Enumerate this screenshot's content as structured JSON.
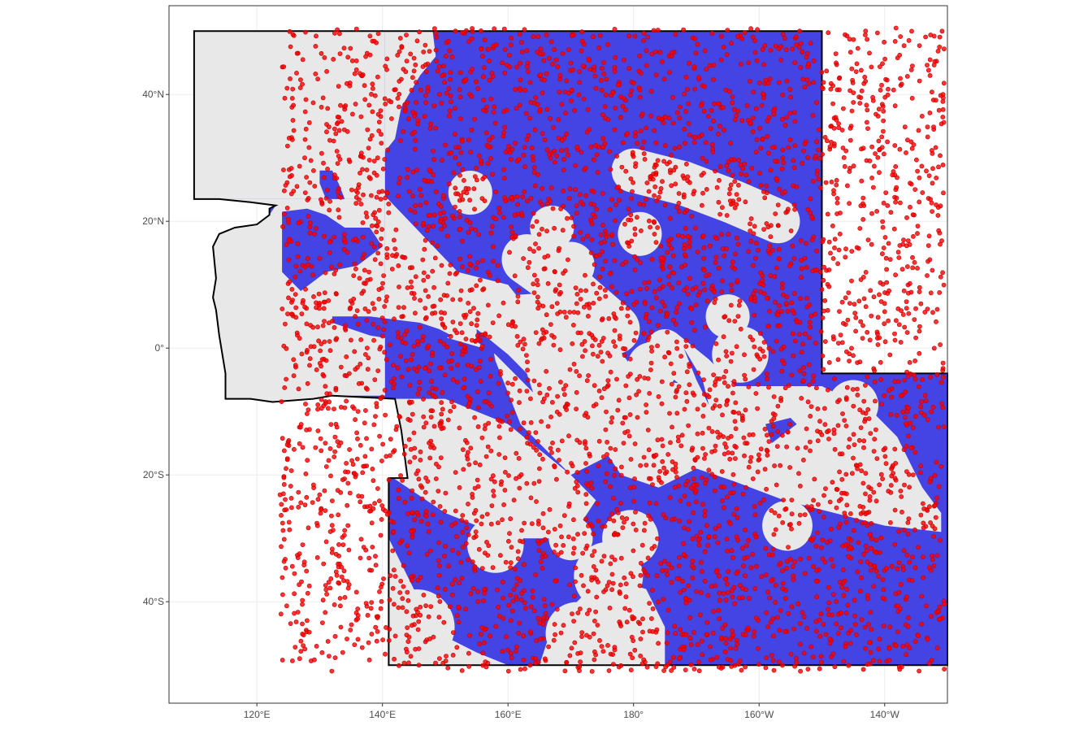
{
  "map": {
    "background_color": "#ffffff",
    "panel_border_color": "#333333",
    "grid_color": "#ebebeb",
    "land_fill": "#e8e8e8",
    "region_outline_color": "#000000",
    "ocean_fill": "#4444e4",
    "point_color": "#ff0000",
    "point_count_estimate": 4500,
    "extent": {
      "lon": [
        -254,
        -130
      ],
      "lat": [
        -56,
        54
      ]
    },
    "x_ticks": [
      {
        "lon": -240,
        "label": "120°E"
      },
      {
        "lon": -220,
        "label": "140°E"
      },
      {
        "lon": -200,
        "label": "160°E"
      },
      {
        "lon": -180,
        "label": "180°"
      },
      {
        "lon": -160,
        "label": "160°W"
      },
      {
        "lon": -140,
        "label": "140°W"
      }
    ],
    "y_ticks": [
      {
        "lat": 40,
        "label": "40°N"
      },
      {
        "lat": 20,
        "label": "20°N"
      },
      {
        "lat": 0,
        "label": "0°"
      },
      {
        "lat": -20,
        "label": "20°S"
      },
      {
        "lat": -40,
        "label": "40°S"
      }
    ],
    "region_outline": [
      [
        -250,
        50
      ],
      [
        -150,
        50
      ],
      [
        -150,
        -4
      ],
      [
        -130,
        -4
      ],
      [
        -130,
        -50
      ],
      [
        -219,
        -50
      ],
      [
        -219,
        -20.5
      ],
      [
        -216,
        -20.5
      ],
      [
        -217,
        -13
      ],
      [
        -218,
        -8
      ],
      [
        -228,
        -7.5
      ],
      [
        -231,
        -8
      ],
      [
        -237.5,
        -8.5
      ],
      [
        -241,
        -8
      ],
      [
        -244,
        -8
      ],
      [
        -245,
        -8
      ],
      [
        -245,
        -4
      ],
      [
        -246,
        2
      ],
      [
        -246.5,
        6
      ],
      [
        -247,
        8
      ],
      [
        -246.5,
        11
      ],
      [
        -247,
        16
      ],
      [
        -246,
        18
      ],
      [
        -243.5,
        19
      ],
      [
        -240,
        19.5
      ],
      [
        -238,
        21
      ],
      [
        -238,
        22
      ],
      [
        -237,
        22.5
      ],
      [
        -241,
        23
      ],
      [
        -246,
        23.5
      ],
      [
        -250,
        23.5
      ],
      [
        -250,
        50
      ]
    ],
    "land_areas": [
      {
        "type": "polygon",
        "points": [
          [
            -250,
            50
          ],
          [
            -219.6,
            50
          ],
          [
            -219.6,
            23.5
          ],
          [
            -246,
            23.5
          ],
          [
            -250,
            23.5
          ]
        ]
      },
      {
        "type": "polygon",
        "points": [
          [
            -219.6,
            50
          ],
          [
            -212,
            50
          ],
          [
            -211.5,
            46
          ],
          [
            -214,
            43
          ],
          [
            -217,
            38
          ],
          [
            -218,
            33
          ],
          [
            -219.6,
            31
          ]
        ]
      },
      {
        "type": "polygon",
        "points": [
          [
            -246,
            23.5
          ],
          [
            -241,
            23
          ],
          [
            -237,
            22.5
          ],
          [
            -238,
            21
          ],
          [
            -240,
            19.5
          ],
          [
            -243.5,
            19
          ],
          [
            -246,
            18
          ],
          [
            -247,
            16
          ],
          [
            -246.5,
            11
          ],
          [
            -247,
            8
          ],
          [
            -246.5,
            6
          ],
          [
            -246,
            2
          ],
          [
            -245,
            -4
          ],
          [
            -245,
            -8
          ],
          [
            -241,
            -8
          ],
          [
            -237.5,
            -8.5
          ],
          [
            -231,
            -8
          ],
          [
            -228,
            -7.5
          ],
          [
            -223,
            -7.5
          ],
          [
            -219.6,
            -7.5
          ],
          [
            -219.6,
            23.5
          ]
        ]
      },
      {
        "type": "polygon",
        "points": [
          [
            -219.6,
            24
          ],
          [
            -208,
            12
          ],
          [
            -200,
            10
          ],
          [
            -196,
            5
          ],
          [
            -204,
            0
          ],
          [
            -211,
            2
          ],
          [
            -216,
            3
          ],
          [
            -219.6,
            4
          ]
        ]
      },
      {
        "type": "polygon",
        "points": [
          [
            -204,
            8
          ],
          [
            -190,
            9
          ],
          [
            -184,
            2
          ],
          [
            -178,
            -6
          ],
          [
            -175,
            -10
          ],
          [
            -182,
            -16
          ],
          [
            -190,
            -20
          ],
          [
            -198,
            -12
          ],
          [
            -202,
            -2
          ]
        ]
      },
      {
        "type": "polygon",
        "points": [
          [
            -219,
            -20
          ],
          [
            -219,
            -30
          ],
          [
            -214,
            -40
          ],
          [
            -211,
            -45
          ],
          [
            -205,
            -48
          ],
          [
            -200,
            -50
          ],
          [
            -219,
            -50
          ]
        ]
      },
      {
        "type": "polygon",
        "points": [
          [
            -219,
            -8
          ],
          [
            -210,
            -8
          ],
          [
            -200,
            -12
          ],
          [
            -190,
            -20
          ],
          [
            -186,
            -24
          ],
          [
            -190,
            -30
          ],
          [
            -200,
            -30
          ],
          [
            -210,
            -26
          ],
          [
            -219,
            -20
          ]
        ]
      },
      {
        "type": "polygon",
        "points": [
          [
            -178,
            -5
          ],
          [
            -168,
            -6
          ],
          [
            -160,
            -6
          ],
          [
            -150,
            -6
          ],
          [
            -142,
            -10
          ],
          [
            -138,
            -14
          ],
          [
            -136,
            -18
          ],
          [
            -134,
            -22
          ],
          [
            -131,
            -26
          ],
          [
            -131,
            -29
          ],
          [
            -140,
            -28
          ],
          [
            -148,
            -26
          ],
          [
            -156,
            -24
          ],
          [
            -164,
            -21
          ],
          [
            -170,
            -19
          ],
          [
            -176,
            -22
          ],
          [
            -182,
            -20
          ],
          [
            -186,
            -14
          ],
          [
            -182,
            -8
          ]
        ]
      },
      {
        "type": "polygon",
        "points": [
          [
            -193,
            -44
          ],
          [
            -195,
            -50
          ],
          [
            -175,
            -50
          ],
          [
            -175,
            -44
          ],
          [
            -178,
            -38
          ],
          [
            -185,
            -36
          ]
        ]
      },
      {
        "type": "circle",
        "center": [
          -155.5,
          -28
        ],
        "r": 4
      },
      {
        "type": "circle",
        "center": [
          -145,
          -9
        ],
        "r": 4
      },
      {
        "type": "circle",
        "center": [
          -190,
          -30
        ],
        "r": 3.5
      },
      {
        "type": "circle",
        "center": [
          -202,
          -31
        ],
        "r": 4.5
      },
      {
        "type": "circle",
        "center": [
          -180.5,
          -30
        ],
        "r": 4.5
      },
      {
        "type": "circle",
        "center": [
          -184,
          -36
        ],
        "r": 5.5
      },
      {
        "type": "circle",
        "center": [
          -189,
          -45
        ],
        "r": 5
      },
      {
        "type": "circle",
        "center": [
          -214.5,
          -44
        ],
        "r": 6
      },
      {
        "type": "circle",
        "center": [
          -206,
          24.5
        ],
        "r": 3.5
      },
      {
        "type": "circle",
        "center": [
          -226.5,
          20.5
        ],
        "r": 2.8
      },
      {
        "type": "circle",
        "center": [
          -179,
          18
        ],
        "r": 3.5
      },
      {
        "type": "circle",
        "center": [
          -193,
          19
        ],
        "r": 3.5
      },
      {
        "type": "circle",
        "center": [
          -190,
          13
        ],
        "r": 3.8
      },
      {
        "type": "circle",
        "center": [
          -165,
          5
        ],
        "r": 3.5
      },
      {
        "type": "circle",
        "center": [
          -163,
          -1
        ],
        "r": 4.5
      },
      {
        "type": "circle",
        "center": [
          -177,
          -3
        ],
        "r": 4
      },
      {
        "type": "circle",
        "center": [
          -187,
          -2
        ],
        "r": 4
      },
      {
        "type": "capsule",
        "points": [
          [
            -180,
            28
          ],
          [
            -172,
            26
          ],
          [
            -164,
            23
          ],
          [
            -157,
            20
          ]
        ],
        "r": 3.5
      },
      {
        "type": "capsule",
        "points": [
          [
            -197,
            14
          ],
          [
            -190,
            9
          ],
          [
            -183,
            3
          ]
        ],
        "r": 4
      },
      {
        "type": "capsule",
        "points": [
          [
            -175,
            0
          ],
          [
            -170,
            -4
          ],
          [
            -166,
            -8
          ]
        ],
        "r": 3
      }
    ],
    "ocean_patches": [
      {
        "type": "polygon",
        "points": [
          [
            -230,
            28
          ],
          [
            -228,
            28
          ],
          [
            -227,
            26
          ],
          [
            -226,
            23.5
          ],
          [
            -229,
            23.5
          ],
          [
            -230,
            26
          ]
        ]
      },
      {
        "type": "polygon",
        "points": [
          [
            -236,
            21.5
          ],
          [
            -232,
            22
          ],
          [
            -229,
            21
          ],
          [
            -226,
            19
          ],
          [
            -222,
            19
          ],
          [
            -220,
            16
          ],
          [
            -224,
            13
          ],
          [
            -229,
            12
          ],
          [
            -233,
            9
          ],
          [
            -236,
            12
          ]
        ]
      },
      {
        "type": "polygon",
        "points": [
          [
            -228,
            5
          ],
          [
            -222,
            5
          ],
          [
            -214,
            4
          ],
          [
            -211,
            3
          ],
          [
            -209,
            2
          ],
          [
            -212,
            0.5
          ],
          [
            -216,
            1
          ],
          [
            -222,
            2
          ],
          [
            -228,
            4
          ]
        ]
      },
      {
        "type": "polygon",
        "points": [
          [
            -205,
            3
          ],
          [
            -200,
            -1
          ],
          [
            -197,
            -4
          ],
          [
            -196,
            -7
          ],
          [
            -199,
            -4
          ],
          [
            -202,
            -1
          ],
          [
            -205,
            1
          ]
        ]
      },
      {
        "type": "polygon",
        "points": [
          [
            -172,
            0
          ],
          [
            -170,
            -5
          ],
          [
            -168,
            -9
          ],
          [
            -169,
            -5
          ]
        ]
      },
      {
        "type": "polygon",
        "points": [
          [
            -159,
            -12
          ],
          [
            -155,
            -11
          ],
          [
            -154,
            -12
          ],
          [
            -158,
            -15
          ]
        ]
      }
    ],
    "point_exclusion": [
      {
        "type": "polygon",
        "points": [
          [
            -250,
            50
          ],
          [
            -236,
            50
          ],
          [
            -236,
            23.5
          ],
          [
            -246,
            23.5
          ],
          [
            -250,
            23.5
          ]
        ]
      },
      {
        "type": "polygon",
        "points": [
          [
            -246,
            23.5
          ],
          [
            -236,
            23.5
          ],
          [
            -236,
            -8
          ],
          [
            -245,
            -8
          ],
          [
            -245,
            -4
          ],
          [
            -246,
            2
          ],
          [
            -247,
            8
          ],
          [
            -247,
            16
          ]
        ]
      }
    ]
  }
}
